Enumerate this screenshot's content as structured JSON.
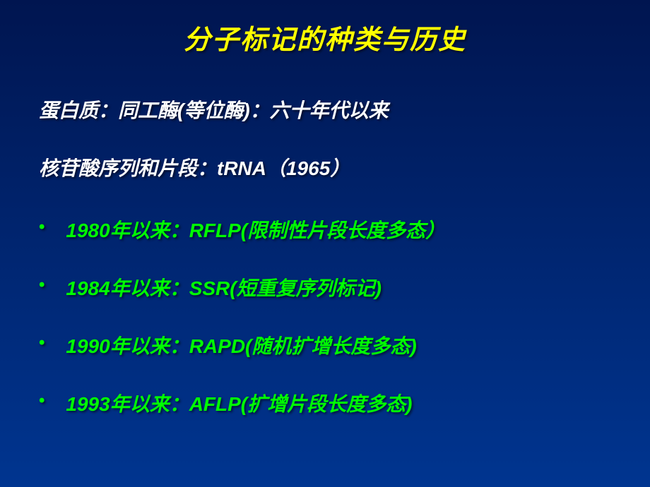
{
  "title": "分子标记的种类与历史",
  "line1": "蛋白质：同工酶(等位酶)：六十年代以来",
  "line2": "核苷酸序列和片段：tRNA（1965）",
  "bullets": {
    "b1": "1980年以来：RFLP(限制性片段长度多态）",
    "b2": "1984年以来：SSR(短重复序列标记)",
    "b3": "1990年以来：RAPD(随机扩增长度多态)",
    "b4": "1993年以来：AFLP(扩增片段长度多态)"
  },
  "colors": {
    "title": "#ffff00",
    "white_text": "#ffffff",
    "green_text": "#00ff00",
    "bg_top": "#001550",
    "bg_bottom": "#003590"
  },
  "font_sizes": {
    "title": 38,
    "body": 28
  }
}
